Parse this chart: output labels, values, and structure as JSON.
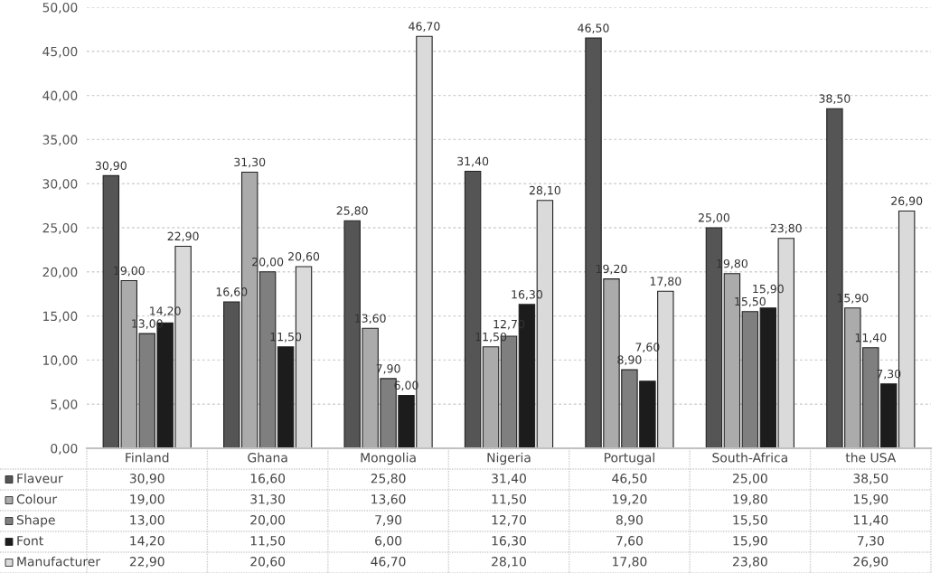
{
  "chart_data": {
    "type": "bar",
    "categories": [
      "Finland",
      "Ghana",
      "Mongolia",
      "Nigeria",
      "Portugal",
      "South-Africa",
      "the USA"
    ],
    "series": [
      {
        "name": "Flaveur",
        "color": "#555555",
        "values": [
          30.9,
          16.6,
          25.8,
          31.4,
          46.5,
          25.0,
          38.5
        ],
        "value_labels": [
          "30,90",
          "16,60",
          "25,80",
          "31,40",
          "46,50",
          "25,00",
          "38,50"
        ]
      },
      {
        "name": "Colour",
        "color": "#ababab",
        "values": [
          19.0,
          31.3,
          13.6,
          11.5,
          19.2,
          19.8,
          15.9
        ],
        "value_labels": [
          "19,00",
          "31,30",
          "13,60",
          "11,50",
          "19,20",
          "19,80",
          "15,90"
        ]
      },
      {
        "name": "Shape",
        "color": "#7f7f7f",
        "values": [
          13.0,
          20.0,
          7.9,
          12.7,
          8.9,
          15.5,
          11.4
        ],
        "value_labels": [
          "13,00",
          "20,00",
          "7,90",
          "12,70",
          "8,90",
          "15,50",
          "11,40"
        ]
      },
      {
        "name": "Font",
        "color": "#1c1c1c",
        "values": [
          14.2,
          11.5,
          6.0,
          16.3,
          7.6,
          15.9,
          7.3
        ],
        "value_labels": [
          "14,20",
          "11,50",
          "6,00",
          "16,30",
          "7,60",
          "15,90",
          "7,30"
        ]
      },
      {
        "name": "Manufacturer",
        "color": "#dadada",
        "values": [
          22.9,
          20.6,
          46.7,
          28.1,
          17.8,
          23.8,
          26.9
        ],
        "value_labels": [
          "22,90",
          "20,60",
          "46,70",
          "28,10",
          "17,80",
          "23,80",
          "26,90"
        ]
      }
    ],
    "ylim": [
      0,
      50
    ],
    "yticks": [
      {
        "value": 0,
        "label": "0,00"
      },
      {
        "value": 5,
        "label": "5,00"
      },
      {
        "value": 10,
        "label": "10,00"
      },
      {
        "value": 15,
        "label": "15,00"
      },
      {
        "value": 20,
        "label": "20,00"
      },
      {
        "value": 25,
        "label": "25,00"
      },
      {
        "value": 30,
        "label": "30,00"
      },
      {
        "value": 35,
        "label": "35,00"
      },
      {
        "value": 40,
        "label": "40,00"
      },
      {
        "value": 45,
        "label": "45,00"
      },
      {
        "value": 50,
        "label": "50,00"
      }
    ],
    "grid": "y",
    "legend": "bottom"
  }
}
